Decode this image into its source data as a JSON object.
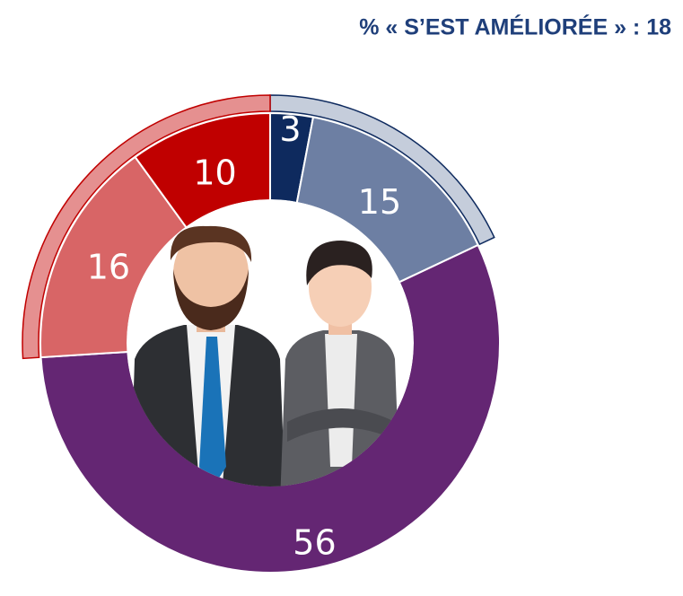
{
  "chart_data": {
    "type": "pie",
    "donut": true,
    "title": "% « S’EST AMÉLIORÉE » : 18",
    "values": [
      3,
      15,
      56,
      16,
      10
    ],
    "colors": [
      "#0e2a5e",
      "#6d7fa3",
      "#642673",
      "#d86566",
      "#c00000"
    ]
  }
}
